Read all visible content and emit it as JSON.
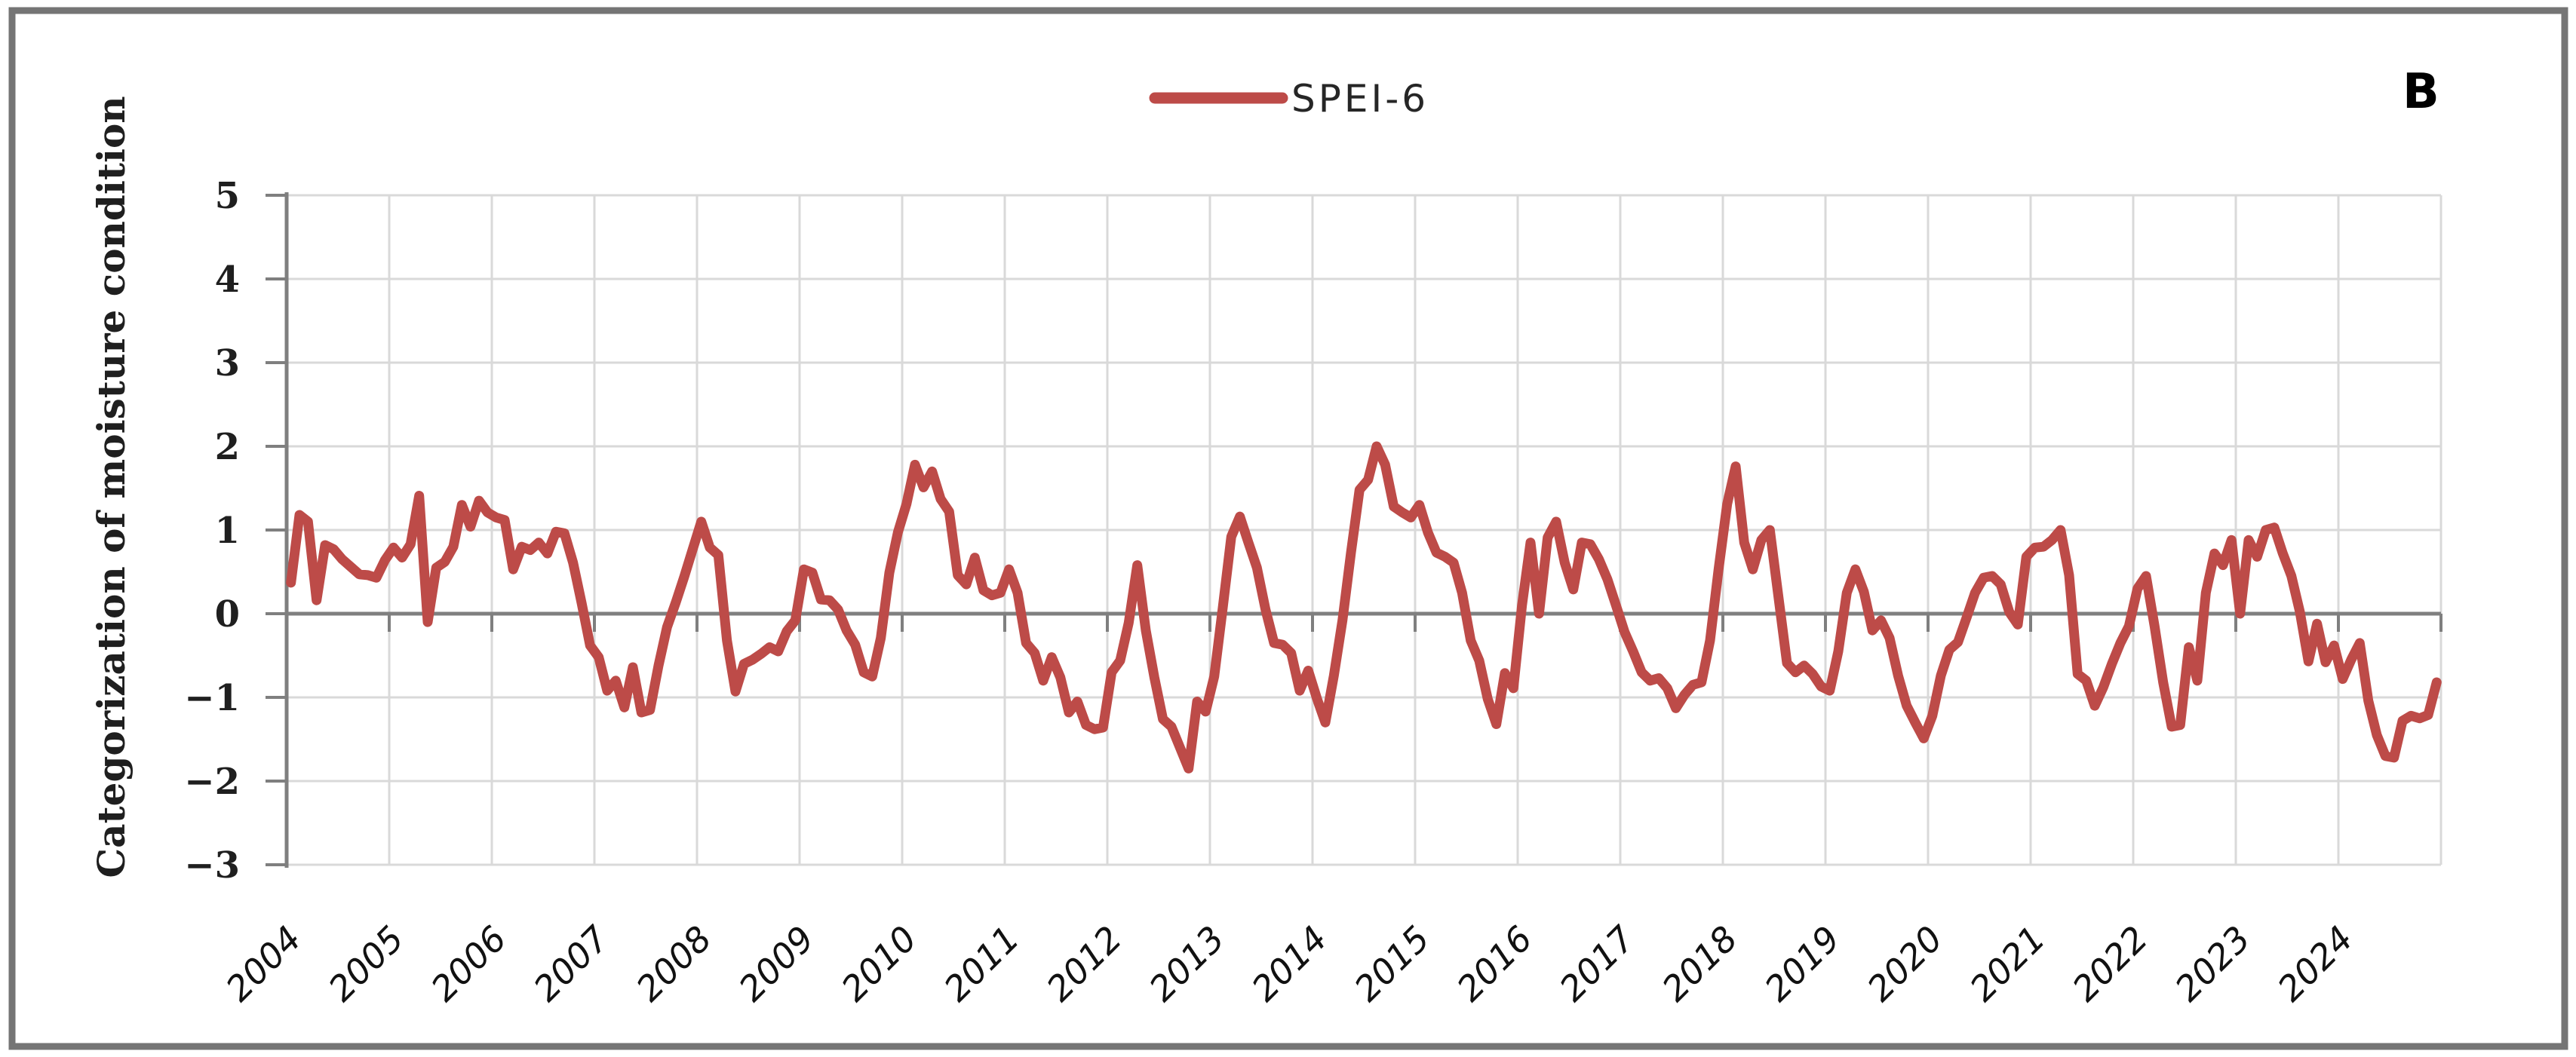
{
  "figure": {
    "panel_label": "B",
    "background": "#ffffff",
    "border_color": "#757575"
  },
  "legend": {
    "position": "top-center",
    "items": [
      {
        "label": "SPEI-6",
        "swatch": "line",
        "color": "#bd4b48"
      }
    ]
  },
  "style": {
    "line_color": "#bd4b48",
    "grid_color": "#d9d9d9",
    "axis_color": "#7f7f7f",
    "zero_line_color": "#808080",
    "tick_color": "#7f7f7f",
    "text_color": "#1f1f1f",
    "border_color": "#757575",
    "background": "#ffffff"
  },
  "chart_data": {
    "type": "line",
    "title": "",
    "xlabel": "",
    "ylabel": "Categorization of moisture condition",
    "ylim": [
      -3,
      5
    ],
    "yticks": [
      5,
      4,
      3,
      2,
      1,
      0,
      -1,
      -2,
      -3
    ],
    "ytick_labels": [
      "5",
      "4",
      "3",
      "2",
      "1",
      "0",
      "−1",
      "−2",
      "−3"
    ],
    "x_tick_labels": [
      "2004",
      "2005",
      "2006",
      "2007",
      "2008",
      "2009",
      "2010",
      "2011",
      "2012",
      "2013",
      "2014",
      "2015",
      "2016",
      "2017",
      "2018",
      "2019",
      "2020",
      "2021",
      "2022",
      "2023",
      "2024"
    ],
    "x_range_years": [
      2004,
      2024
    ],
    "frequency": "monthly",
    "grid": true,
    "legend_position": "top-center",
    "series": [
      {
        "name": "SPEI-6",
        "color": "#bd4b48",
        "start": "2004-01",
        "values_by_year": [
          {
            "year": 2004,
            "values": [
              0.37,
              1.18,
              1.1,
              0.16,
              0.82,
              0.77,
              0.65,
              0.56,
              0.47,
              0.46,
              0.43,
              0.64
            ]
          },
          {
            "year": 2005,
            "values": [
              0.79,
              0.67,
              0.83,
              1.41,
              -0.1,
              0.55,
              0.62,
              0.8,
              1.3,
              1.04,
              1.35,
              1.21
            ]
          },
          {
            "year": 2006,
            "values": [
              1.15,
              1.12,
              0.53,
              0.8,
              0.76,
              0.85,
              0.72,
              0.98,
              0.96,
              0.61,
              0.13,
              -0.38
            ]
          },
          {
            "year": 2007,
            "values": [
              -0.52,
              -0.92,
              -0.8,
              -1.12,
              -0.64,
              -1.18,
              -1.15,
              -0.62,
              -0.16,
              0.13,
              0.44,
              0.77
            ]
          },
          {
            "year": 2008,
            "values": [
              1.1,
              0.79,
              0.7,
              -0.32,
              -0.93,
              -0.6,
              -0.55,
              -0.48,
              -0.4,
              -0.45,
              -0.21,
              -0.08
            ]
          },
          {
            "year": 2009,
            "values": [
              0.53,
              0.49,
              0.17,
              0.16,
              0.05,
              -0.2,
              -0.37,
              -0.7,
              -0.75,
              -0.29,
              0.49,
              0.97
            ]
          },
          {
            "year": 2010,
            "values": [
              1.31,
              1.78,
              1.51,
              1.7,
              1.37,
              1.22,
              0.46,
              0.35,
              0.67,
              0.28,
              0.22,
              0.25
            ]
          },
          {
            "year": 2011,
            "values": [
              0.53,
              0.25,
              -0.35,
              -0.47,
              -0.8,
              -0.52,
              -0.76,
              -1.18,
              -1.05,
              -1.33,
              -1.38,
              -1.36
            ]
          },
          {
            "year": 2012,
            "values": [
              -0.7,
              -0.56,
              -0.11,
              0.58,
              -0.2,
              -0.76,
              -1.26,
              -1.35,
              -1.6,
              -1.85,
              -1.05,
              -1.17
            ]
          },
          {
            "year": 2013,
            "values": [
              -0.75,
              0.07,
              0.92,
              1.16,
              0.85,
              0.55,
              0.05,
              -0.35,
              -0.37,
              -0.47,
              -0.92,
              -0.68
            ]
          },
          {
            "year": 2014,
            "values": [
              -1.01,
              -1.3,
              -0.74,
              -0.08,
              0.73,
              1.48,
              1.6,
              2.0,
              1.78,
              1.28,
              1.21,
              1.15
            ]
          },
          {
            "year": 2015,
            "values": [
              1.3,
              0.97,
              0.73,
              0.68,
              0.61,
              0.25,
              -0.32,
              -0.56,
              -1.02,
              -1.32,
              -0.71,
              -0.89
            ]
          },
          {
            "year": 2016,
            "values": [
              0.1,
              0.85,
              0.0,
              0.91,
              1.1,
              0.61,
              0.29,
              0.85,
              0.83,
              0.65,
              0.41,
              0.1
            ]
          },
          {
            "year": 2017,
            "values": [
              -0.22,
              -0.45,
              -0.7,
              -0.8,
              -0.77,
              -0.89,
              -1.13,
              -0.97,
              -0.85,
              -0.82,
              -0.32,
              0.53
            ]
          },
          {
            "year": 2018,
            "values": [
              1.31,
              1.76,
              0.85,
              0.53,
              0.88,
              1.0,
              0.2,
              -0.59,
              -0.7,
              -0.62,
              -0.72,
              -0.87
            ]
          },
          {
            "year": 2019,
            "values": [
              -0.92,
              -0.45,
              0.25,
              0.53,
              0.26,
              -0.2,
              -0.08,
              -0.29,
              -0.74,
              -1.1,
              -1.3,
              -1.49
            ]
          },
          {
            "year": 2020,
            "values": [
              -1.22,
              -0.74,
              -0.43,
              -0.34,
              -0.05,
              0.25,
              0.43,
              0.45,
              0.35,
              0.02,
              -0.13,
              0.68
            ]
          },
          {
            "year": 2021,
            "values": [
              0.79,
              0.8,
              0.88,
              1.0,
              0.46,
              -0.72,
              -0.8,
              -1.1,
              -0.88,
              -0.6,
              -0.35,
              -0.15
            ]
          },
          {
            "year": 2022,
            "values": [
              0.3,
              0.45,
              -0.15,
              -0.82,
              -1.35,
              -1.33,
              -0.4,
              -0.8,
              0.25,
              0.72,
              0.58,
              0.88
            ]
          },
          {
            "year": 2023,
            "values": [
              0.0,
              0.88,
              0.68,
              1.0,
              1.03,
              0.72,
              0.45,
              0.02,
              -0.57,
              -0.12,
              -0.58,
              -0.38
            ]
          },
          {
            "year": 2024,
            "values": [
              -0.78,
              -0.55,
              -0.35,
              -1.04,
              -1.45,
              -1.7,
              -1.72,
              -1.28,
              -1.22,
              -1.25,
              -1.21,
              -0.82
            ]
          }
        ]
      }
    ]
  }
}
